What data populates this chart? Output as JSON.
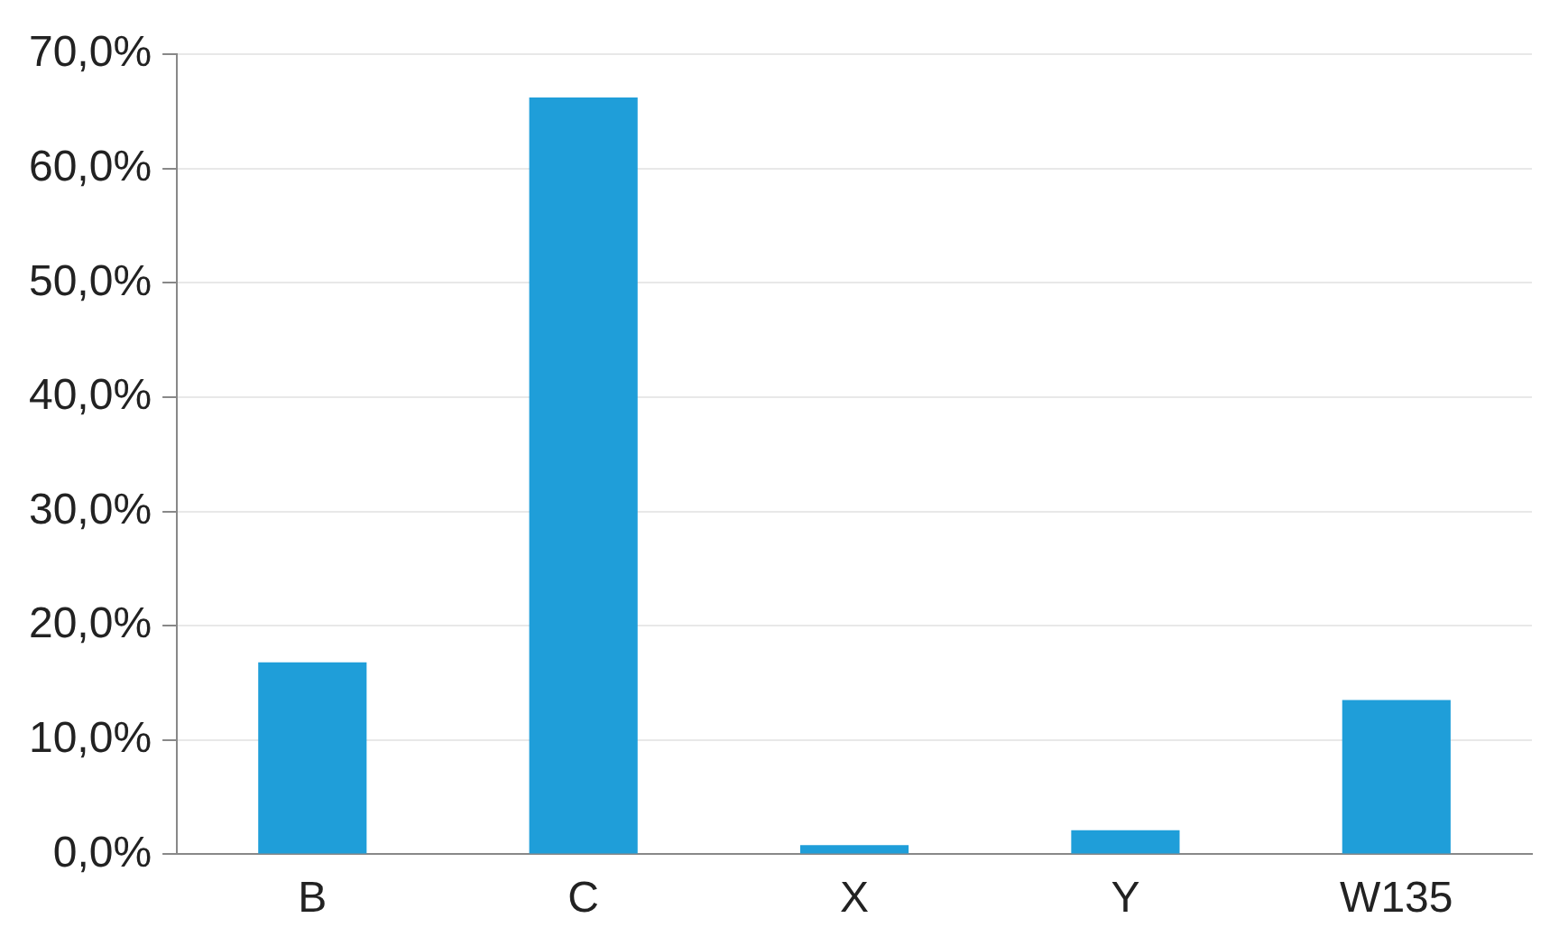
{
  "chart_data": {
    "type": "bar",
    "categories": [
      "B",
      "C",
      "X",
      "Y",
      "W135"
    ],
    "values": [
      16.8,
      66.2,
      0.8,
      2.1,
      13.5
    ],
    "color": "#1f9ed9",
    "ylim": [
      0,
      70
    ],
    "yticks": [
      {
        "value": 0,
        "label": "0,0%"
      },
      {
        "value": 10,
        "label": "10,0%"
      },
      {
        "value": 20,
        "label": "20,0%"
      },
      {
        "value": 30,
        "label": "30,0%"
      },
      {
        "value": 40,
        "label": "40,0%"
      },
      {
        "value": 50,
        "label": "50,0%"
      },
      {
        "value": 60,
        "label": "60,0%"
      },
      {
        "value": 70,
        "label": "70,0%"
      }
    ],
    "grid": "y",
    "legend": false
  }
}
